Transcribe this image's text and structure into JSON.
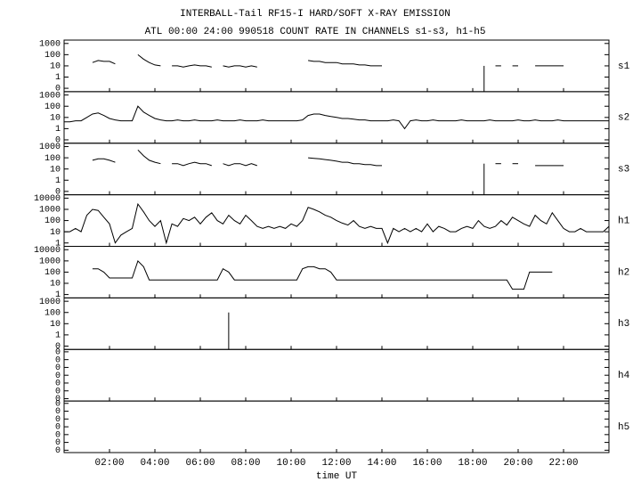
{
  "chart_data": {
    "type": "line",
    "title": "INTERBALL-Tail RF15-I HARD/SOFT X-RAY EMISSION",
    "subtitle": "ATL 00:00 24:00 990518  COUNT RATE IN CHANNELS s1-s3, h1-h5",
    "xlabel": "time UT",
    "xlim": [
      0,
      24
    ],
    "xticks": [
      {
        "value": 2,
        "label": "02:00"
      },
      {
        "value": 4,
        "label": "04:00"
      },
      {
        "value": 6,
        "label": "06:00"
      },
      {
        "value": 8,
        "label": "08:00"
      },
      {
        "value": 10,
        "label": "10:00"
      },
      {
        "value": 12,
        "label": "12:00"
      },
      {
        "value": 14,
        "label": "14:00"
      },
      {
        "value": 16,
        "label": "16:00"
      },
      {
        "value": 18,
        "label": "18:00"
      },
      {
        "value": 20,
        "label": "20:00"
      },
      {
        "value": 22,
        "label": "22:00"
      }
    ],
    "color": "#000000",
    "yscale": "log",
    "x": [
      0,
      0.25,
      0.5,
      0.75,
      1,
      1.25,
      1.5,
      1.75,
      2,
      2.25,
      2.5,
      2.75,
      3,
      3.25,
      3.5,
      3.75,
      4,
      4.25,
      4.5,
      4.75,
      5,
      5.25,
      5.5,
      5.75,
      6,
      6.25,
      6.5,
      6.75,
      7,
      7.25,
      7.5,
      7.75,
      8,
      8.25,
      8.5,
      8.75,
      9,
      9.25,
      9.5,
      9.75,
      10,
      10.25,
      10.5,
      10.75,
      11,
      11.25,
      11.5,
      11.75,
      12,
      12.25,
      12.5,
      12.75,
      13,
      13.25,
      13.5,
      13.75,
      14,
      14.25,
      14.5,
      14.75,
      15,
      15.25,
      15.5,
      15.75,
      16,
      16.25,
      16.5,
      16.75,
      17,
      17.25,
      17.5,
      17.75,
      18,
      18.25,
      18.5,
      18.75,
      19,
      19.25,
      19.5,
      19.75,
      20,
      20.25,
      20.5,
      20.75,
      21,
      21.25,
      21.5,
      21.75,
      22,
      22.25,
      22.5,
      22.75,
      23,
      23.25,
      23.5,
      23.75,
      24
    ],
    "panels": [
      {
        "name": "s1",
        "ylim": [
          0.05,
          2000
        ],
        "yticks": [
          1000,
          100,
          10,
          1,
          {
            "value": 0.1,
            "label": "0"
          }
        ],
        "values": [
          null,
          null,
          null,
          null,
          null,
          20,
          30,
          25,
          25,
          15,
          null,
          null,
          null,
          100,
          40,
          20,
          12,
          10,
          null,
          10,
          10,
          8,
          10,
          12,
          10,
          10,
          8,
          null,
          10,
          8,
          10,
          10,
          8,
          10,
          8,
          null,
          null,
          null,
          null,
          null,
          null,
          null,
          null,
          30,
          25,
          25,
          20,
          20,
          20,
          15,
          15,
          15,
          12,
          12,
          10,
          10,
          10,
          null,
          null,
          null,
          null,
          null,
          null,
          null,
          null,
          null,
          null,
          null,
          null,
          null,
          null,
          null,
          null,
          null,
          10,
          null,
          10,
          10,
          null,
          10,
          10,
          null,
          null,
          10,
          10,
          10,
          10,
          10,
          10,
          null,
          null,
          null,
          null,
          null,
          null,
          null,
          null
        ]
      },
      {
        "name": "s2",
        "ylim": [
          0.05,
          2000
        ],
        "yticks": [
          1000,
          100,
          10,
          1,
          {
            "value": 0.1,
            "label": "0"
          }
        ],
        "values": [
          4,
          4,
          5,
          5,
          10,
          20,
          25,
          15,
          8,
          6,
          5,
          5,
          5,
          100,
          30,
          15,
          8,
          6,
          5,
          5,
          6,
          5,
          5,
          6,
          5,
          5,
          5,
          6,
          5,
          5,
          5,
          6,
          5,
          5,
          5,
          6,
          5,
          5,
          5,
          5,
          5,
          5,
          6,
          15,
          20,
          20,
          15,
          12,
          10,
          8,
          8,
          7,
          6,
          6,
          5,
          5,
          5,
          5,
          6,
          5,
          1,
          5,
          6,
          5,
          5,
          6,
          5,
          5,
          5,
          5,
          6,
          5,
          5,
          5,
          5,
          6,
          5,
          5,
          5,
          5,
          6,
          5,
          5,
          6,
          5,
          5,
          5,
          6,
          5,
          5,
          5,
          5,
          5,
          5,
          5,
          5,
          5
        ]
      },
      {
        "name": "s3",
        "ylim": [
          0.05,
          2000
        ],
        "yticks": [
          1000,
          100,
          10,
          1,
          {
            "value": 0.1,
            "label": "0"
          }
        ],
        "values": [
          null,
          null,
          null,
          null,
          null,
          60,
          80,
          80,
          60,
          40,
          null,
          null,
          null,
          500,
          150,
          60,
          40,
          30,
          null,
          30,
          30,
          20,
          30,
          40,
          30,
          30,
          20,
          null,
          30,
          20,
          30,
          30,
          20,
          30,
          20,
          null,
          null,
          null,
          null,
          null,
          null,
          null,
          null,
          100,
          90,
          80,
          70,
          60,
          50,
          40,
          40,
          30,
          30,
          25,
          25,
          20,
          20,
          null,
          null,
          null,
          null,
          null,
          null,
          null,
          null,
          null,
          null,
          null,
          null,
          null,
          null,
          null,
          null,
          null,
          30,
          null,
          30,
          30,
          null,
          30,
          30,
          null,
          null,
          20,
          20,
          20,
          20,
          20,
          20,
          null,
          null,
          null,
          null,
          null,
          null,
          null,
          null
        ]
      },
      {
        "name": "h1",
        "ylim": [
          0.5,
          20000
        ],
        "yticks": [
          10000,
          1000,
          100,
          10,
          1
        ],
        "values": [
          10,
          10,
          20,
          10,
          300,
          1000,
          800,
          200,
          50,
          1,
          5,
          10,
          20,
          3000,
          600,
          100,
          30,
          100,
          1,
          50,
          30,
          150,
          100,
          200,
          50,
          200,
          500,
          100,
          50,
          300,
          100,
          50,
          300,
          100,
          30,
          20,
          30,
          20,
          30,
          20,
          50,
          30,
          100,
          1500,
          1000,
          600,
          300,
          200,
          100,
          60,
          40,
          100,
          30,
          20,
          30,
          20,
          20,
          1,
          20,
          10,
          20,
          10,
          20,
          10,
          50,
          10,
          30,
          20,
          10,
          10,
          20,
          30,
          20,
          100,
          30,
          20,
          30,
          100,
          40,
          200,
          100,
          50,
          30,
          300,
          100,
          50,
          500,
          100,
          20,
          10,
          10,
          20,
          10,
          10,
          10,
          10,
          30
        ]
      },
      {
        "name": "h2",
        "ylim": [
          0.5,
          20000
        ],
        "yticks": [
          10000,
          1000,
          100,
          10,
          1
        ],
        "values": [
          null,
          null,
          null,
          null,
          null,
          200,
          200,
          100,
          30,
          30,
          30,
          30,
          30,
          1000,
          300,
          20,
          20,
          20,
          20,
          20,
          20,
          20,
          20,
          20,
          20,
          20,
          20,
          20,
          200,
          100,
          20,
          20,
          20,
          20,
          20,
          20,
          20,
          20,
          20,
          20,
          20,
          20,
          200,
          300,
          300,
          200,
          200,
          100,
          20,
          20,
          20,
          20,
          20,
          20,
          20,
          20,
          20,
          20,
          20,
          20,
          20,
          20,
          20,
          20,
          20,
          20,
          20,
          20,
          20,
          20,
          20,
          20,
          20,
          20,
          20,
          20,
          20,
          20,
          20,
          3,
          3,
          3,
          100,
          100,
          100,
          100,
          100,
          null,
          null,
          null,
          null,
          null,
          null,
          null,
          null,
          null,
          null
        ]
      },
      {
        "name": "h3",
        "ylim": [
          0.05,
          2000
        ],
        "yticks": [
          1000,
          100,
          10,
          1,
          {
            "value": 0.1,
            "label": "0"
          }
        ],
        "values": [
          null,
          null,
          null,
          null,
          null,
          null,
          null,
          null,
          null,
          null,
          null,
          null,
          null,
          null,
          null,
          null,
          null,
          null,
          null,
          null,
          null,
          null,
          null,
          null,
          null,
          null,
          null,
          null,
          null,
          100,
          null,
          null,
          null,
          null,
          null,
          null,
          null,
          null,
          null,
          null,
          null,
          null,
          null,
          null,
          null,
          null,
          null,
          null,
          null,
          null,
          null,
          null,
          null,
          null,
          null,
          null,
          null,
          null,
          null,
          null,
          null,
          null,
          null,
          null,
          null,
          null,
          null,
          null,
          null,
          null,
          null,
          null,
          null,
          null,
          null,
          null,
          null,
          null,
          null,
          null,
          null,
          null,
          null,
          null,
          null,
          null,
          null,
          null,
          null,
          null,
          null,
          null,
          null,
          null,
          null,
          null,
          null
        ]
      },
      {
        "name": "h4",
        "ylim": [
          5e-08,
          0.2
        ],
        "yticks": [
          {
            "value": 0.1,
            "label": "0"
          },
          {
            "value": 0.01,
            "label": "0"
          },
          {
            "value": 0.001,
            "label": "0"
          },
          {
            "value": 0.0001,
            "label": "0"
          },
          {
            "value": 1e-05,
            "label": "0"
          },
          {
            "value": 1e-06,
            "label": "0"
          },
          {
            "value": 1e-07,
            "label": "0"
          }
        ]
      },
      {
        "name": "h5",
        "ylim": [
          5e-08,
          0.2
        ],
        "yticks": [
          {
            "value": 0.1,
            "label": "0"
          },
          {
            "value": 0.01,
            "label": "0"
          },
          {
            "value": 0.001,
            "label": "0"
          },
          {
            "value": 0.0001,
            "label": "0"
          },
          {
            "value": 1e-05,
            "label": "0"
          },
          {
            "value": 1e-06,
            "label": "0"
          },
          {
            "value": 1e-07,
            "label": "0"
          }
        ]
      }
    ]
  }
}
